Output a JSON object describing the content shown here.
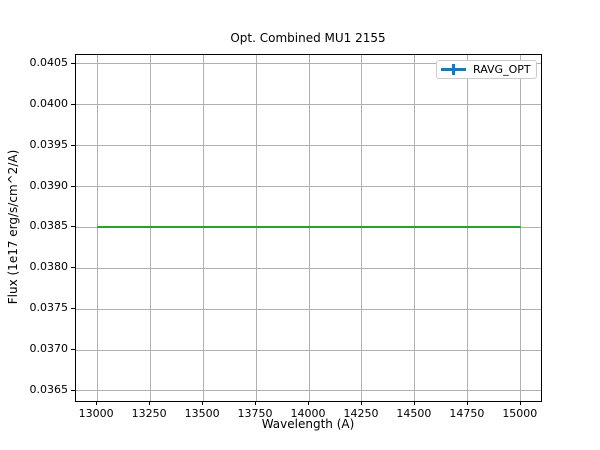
{
  "chart_data": {
    "type": "line",
    "title": "Opt. Combined MU1 2155",
    "xlabel": "Wavelength (A)",
    "ylabel": "Flux (1e17 erg/s/cm^2/A)",
    "xlim": [
      12900,
      15100
    ],
    "ylim": [
      0.036365,
      0.04061
    ],
    "xticks": [
      13000,
      13250,
      13500,
      13750,
      14000,
      14250,
      14500,
      14750,
      15000
    ],
    "yticks": [
      0.0365,
      0.037,
      0.0375,
      0.038,
      0.0385,
      0.039,
      0.0395,
      0.04,
      0.0405
    ],
    "ytick_decimals": 4,
    "grid": true,
    "grid_color": "#b0b0b0",
    "legend": {
      "position": "upper right",
      "entries": [
        {
          "label": "RAVG_OPT",
          "color": "#1f77b4",
          "style": "errorbar"
        }
      ]
    },
    "series": [
      {
        "name": "RAVG_OPT",
        "x": [
          13000,
          15000
        ],
        "y": [
          0.0385,
          0.0385
        ],
        "color": "#2ca02c"
      }
    ]
  }
}
